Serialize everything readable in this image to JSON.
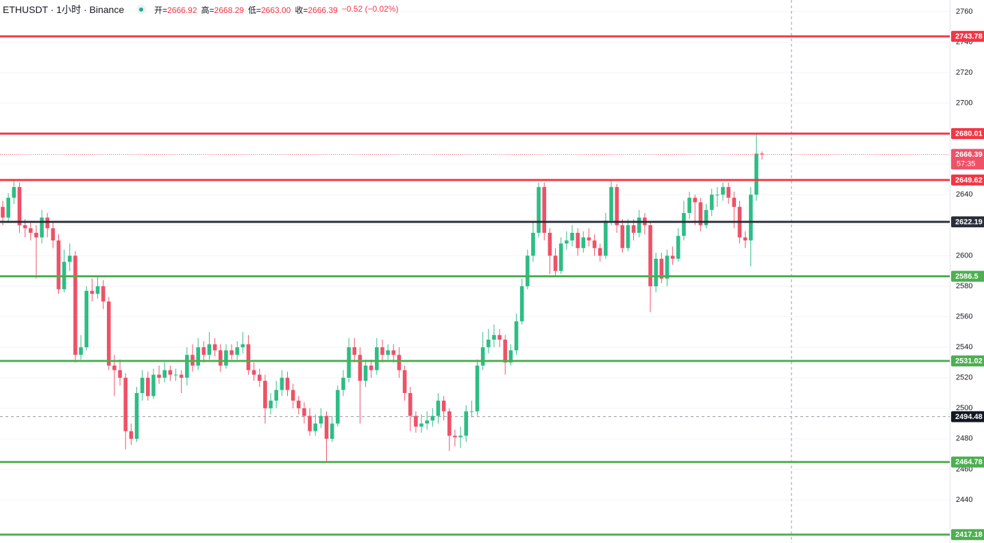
{
  "chart_data": {
    "type": "candlestick",
    "title": "ETHUSDT · 1小时 · Binance",
    "ohlc_legend": [
      {
        "label": "开=",
        "value": "2666.92"
      },
      {
        "label": "高=",
        "value": "2668.29"
      },
      {
        "label": "低=",
        "value": "2663.00"
      },
      {
        "label": "收=",
        "value": "2666.39"
      }
    ],
    "change": "−0.52 (−0.02%)",
    "up_color": "#2dbd85",
    "down_color": "#ef5167",
    "ylim": [
      2411.7,
      2767.6
    ],
    "yticks": [
      2440,
      2460,
      2480,
      2500,
      2520,
      2540,
      2560,
      2580,
      2600,
      2620,
      2640,
      2660,
      2680,
      2700,
      2720,
      2740,
      2760
    ],
    "grid": true,
    "open": [
      2632,
      2625,
      2638,
      2645,
      2620,
      2618,
      2615,
      2612,
      2625,
      2618,
      2610,
      2578,
      2596,
      2600,
      2535,
      2540,
      2577,
      2575,
      2580,
      2570,
      2528,
      2525,
      2520,
      2485,
      2480,
      2510,
      2520,
      2508,
      2522,
      2520,
      2525,
      2522,
      2522,
      2520,
      2535,
      2528,
      2540,
      2535,
      2542,
      2538,
      2528,
      2538,
      2535,
      2540,
      2542,
      2525,
      2522,
      2518,
      2500,
      2505,
      2512,
      2520,
      2512,
      2505,
      2500,
      2495,
      2485,
      2490,
      2495,
      2480,
      2490,
      2512,
      2520,
      2540,
      2535,
      2518,
      2528,
      2525,
      2540,
      2535,
      2538,
      2535,
      2525,
      2510,
      2495,
      2488,
      2490,
      2492,
      2495,
      2505,
      2498,
      2482,
      2481,
      2482,
      2498,
      2498,
      2528,
      2540,
      2545,
      2548,
      2545,
      2530,
      2538,
      2557,
      2580,
      2600,
      2615,
      2645,
      2615,
      2600,
      2590,
      2608,
      2610,
      2615,
      2605,
      2612,
      2610,
      2605,
      2600,
      2623,
      2645,
      2620,
      2605,
      2620,
      2615,
      2625,
      2620,
      2580,
      2598,
      2585,
      2600,
      2598,
      2613,
      2628,
      2638,
      2635,
      2620,
      2630,
      2640,
      2640,
      2645,
      2638,
      2632,
      2612,
      2610,
      2640,
      2666.92
    ],
    "high": [
      2636,
      2641,
      2650,
      2648,
      2624,
      2622,
      2620,
      2630,
      2628,
      2622,
      2614,
      2604,
      2608,
      2603,
      2548,
      2580,
      2585,
      2587,
      2584,
      2573,
      2535,
      2532,
      2523,
      2490,
      2514,
      2525,
      2524,
      2526,
      2528,
      2530,
      2528,
      2526,
      2525,
      2540,
      2542,
      2546,
      2544,
      2550,
      2546,
      2542,
      2542,
      2542,
      2544,
      2550,
      2548,
      2530,
      2526,
      2522,
      2510,
      2518,
      2525,
      2524,
      2516,
      2508,
      2504,
      2500,
      2496,
      2500,
      2498,
      2495,
      2515,
      2525,
      2546,
      2546,
      2540,
      2532,
      2532,
      2546,
      2545,
      2542,
      2542,
      2540,
      2528,
      2514,
      2498,
      2496,
      2498,
      2500,
      2510,
      2508,
      2500,
      2486,
      2488,
      2502,
      2505,
      2532,
      2550,
      2552,
      2555,
      2552,
      2548,
      2542,
      2562,
      2585,
      2604,
      2622,
      2648,
      2648,
      2618,
      2605,
      2612,
      2616,
      2620,
      2618,
      2616,
      2618,
      2614,
      2608,
      2628,
      2650,
      2647,
      2624,
      2624,
      2624,
      2630,
      2628,
      2622,
      2602,
      2602,
      2604,
      2606,
      2618,
      2636,
      2642,
      2640,
      2638,
      2634,
      2644,
      2645,
      2648,
      2648,
      2642,
      2636,
      2616,
      2645,
      2680,
      2668.29
    ],
    "low": [
      2620,
      2622,
      2634,
      2615,
      2612,
      2610,
      2585,
      2608,
      2612,
      2605,
      2575,
      2576,
      2590,
      2530,
      2532,
      2538,
      2570,
      2572,
      2565,
      2525,
      2508,
      2515,
      2473,
      2476,
      2478,
      2505,
      2505,
      2506,
      2516,
      2517,
      2518,
      2518,
      2510,
      2515,
      2524,
      2525,
      2530,
      2532,
      2534,
      2524,
      2526,
      2532,
      2532,
      2536,
      2522,
      2518,
      2514,
      2490,
      2496,
      2500,
      2508,
      2508,
      2500,
      2496,
      2490,
      2482,
      2482,
      2487,
      2465,
      2478,
      2488,
      2508,
      2517,
      2530,
      2490,
      2514,
      2520,
      2522,
      2530,
      2532,
      2530,
      2520,
      2505,
      2485,
      2484,
      2484,
      2486,
      2488,
      2490,
      2492,
      2472,
      2475,
      2474,
      2478,
      2494,
      2495,
      2525,
      2536,
      2540,
      2540,
      2522,
      2528,
      2535,
      2555,
      2578,
      2596,
      2612,
      2610,
      2588,
      2587,
      2588,
      2604,
      2606,
      2600,
      2602,
      2606,
      2600,
      2596,
      2598,
      2620,
      2615,
      2602,
      2603,
      2610,
      2612,
      2614,
      2563,
      2576,
      2582,
      2580,
      2594,
      2596,
      2610,
      2624,
      2620,
      2616,
      2618,
      2626,
      2632,
      2636,
      2634,
      2618,
      2608,
      2605,
      2593,
      2636,
      2663
    ],
    "close": [
      2625,
      2638,
      2645,
      2620,
      2618,
      2615,
      2612,
      2625,
      2618,
      2610,
      2578,
      2596,
      2600,
      2535,
      2540,
      2577,
      2575,
      2580,
      2570,
      2528,
      2525,
      2520,
      2485,
      2480,
      2510,
      2520,
      2508,
      2522,
      2520,
      2525,
      2522,
      2522,
      2520,
      2535,
      2528,
      2540,
      2535,
      2542,
      2538,
      2528,
      2538,
      2535,
      2540,
      2542,
      2525,
      2522,
      2518,
      2500,
      2505,
      2512,
      2520,
      2512,
      2505,
      2500,
      2495,
      2485,
      2490,
      2495,
      2480,
      2490,
      2512,
      2520,
      2540,
      2535,
      2518,
      2528,
      2525,
      2540,
      2535,
      2538,
      2535,
      2525,
      2510,
      2495,
      2488,
      2490,
      2492,
      2495,
      2505,
      2498,
      2482,
      2481,
      2482,
      2498,
      2498,
      2528,
      2540,
      2545,
      2548,
      2545,
      2530,
      2538,
      2557,
      2580,
      2600,
      2615,
      2645,
      2615,
      2600,
      2590,
      2608,
      2610,
      2615,
      2605,
      2612,
      2610,
      2605,
      2600,
      2623,
      2645,
      2620,
      2605,
      2620,
      2615,
      2625,
      2620,
      2580,
      2598,
      2585,
      2600,
      2598,
      2613,
      2628,
      2638,
      2635,
      2620,
      2630,
      2640,
      2640,
      2645,
      2638,
      2632,
      2612,
      2610,
      2640,
      2666.92,
      2666.39
    ],
    "levels": [
      {
        "value": 2743.78,
        "color": "#f23645"
      },
      {
        "value": 2680.01,
        "color": "#f23645"
      },
      {
        "value": 2649.62,
        "color": "#f23645"
      },
      {
        "value": 2622.19,
        "color": "#2a2e39"
      },
      {
        "value": 2586.5,
        "color": "#4caf50"
      },
      {
        "value": 2531.02,
        "color": "#4caf50"
      },
      {
        "value": 2464.78,
        "color": "#4caf50"
      },
      {
        "value": 2417.18,
        "color": "#4caf50"
      }
    ],
    "crosshair": 2494.48,
    "countdown": "57:35"
  }
}
